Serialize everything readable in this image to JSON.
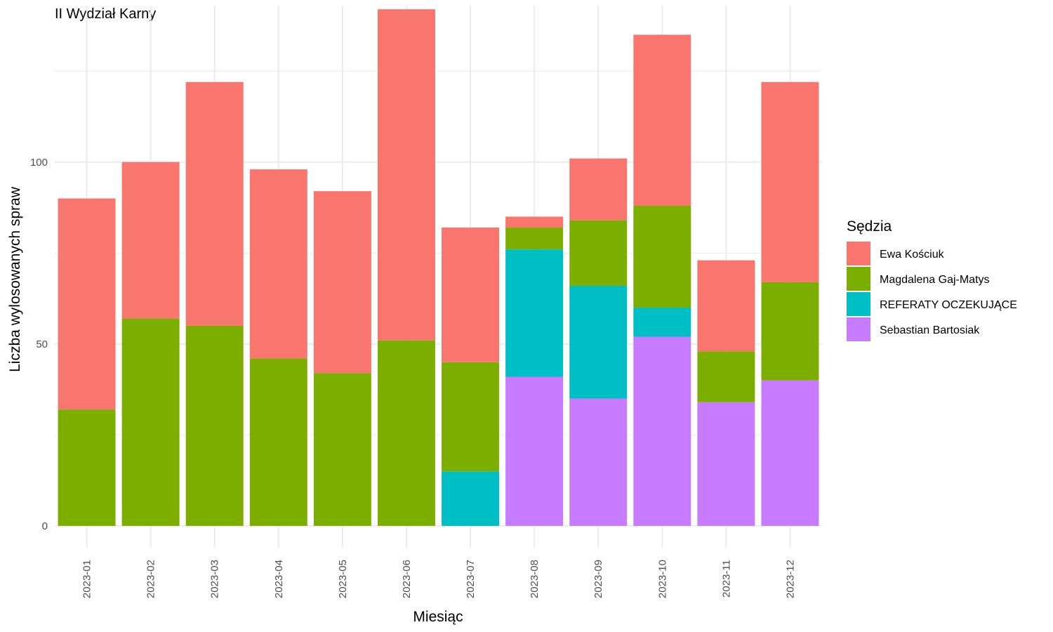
{
  "chart_data": {
    "type": "bar",
    "stacked": true,
    "title": "II Wydział Karny",
    "xlabel": "Miesiąc",
    "ylabel": "Liczba wylosowanych spraw",
    "ylim": [
      -6,
      143
    ],
    "yticks": [
      0,
      50,
      100
    ],
    "grid": true,
    "legend_title": "Sędzia",
    "legend_position": "right",
    "categories": [
      "2023-01",
      "2023-02",
      "2023-03",
      "2023-04",
      "2023-05",
      "2023-06",
      "2023-07",
      "2023-08",
      "2023-09",
      "2023-10",
      "2023-11",
      "2023-12"
    ],
    "series": [
      {
        "name": "Sebastian Bartosiak",
        "color": "#C77CFF",
        "values": [
          0,
          0,
          0,
          0,
          0,
          0,
          0,
          41,
          35,
          52,
          34,
          40
        ]
      },
      {
        "name": "REFERATY OCZEKUJĄCE",
        "color": "#00BFC4",
        "values": [
          0,
          0,
          0,
          0,
          0,
          0,
          15,
          35,
          31,
          8,
          0,
          0
        ]
      },
      {
        "name": "Magdalena Gaj-Matys",
        "color": "#7CAE00",
        "values": [
          32,
          57,
          55,
          46,
          42,
          51,
          30,
          6,
          18,
          28,
          14,
          27
        ]
      },
      {
        "name": "Ewa Kościuk",
        "color": "#F8766D",
        "values": [
          58,
          43,
          67,
          52,
          50,
          91,
          37,
          3,
          17,
          47,
          25,
          55
        ]
      }
    ],
    "legend_order": [
      "Ewa Kościuk",
      "Magdalena Gaj-Matys",
      "REFERATY OCZEKUJĄCE",
      "Sebastian Bartosiak"
    ]
  }
}
